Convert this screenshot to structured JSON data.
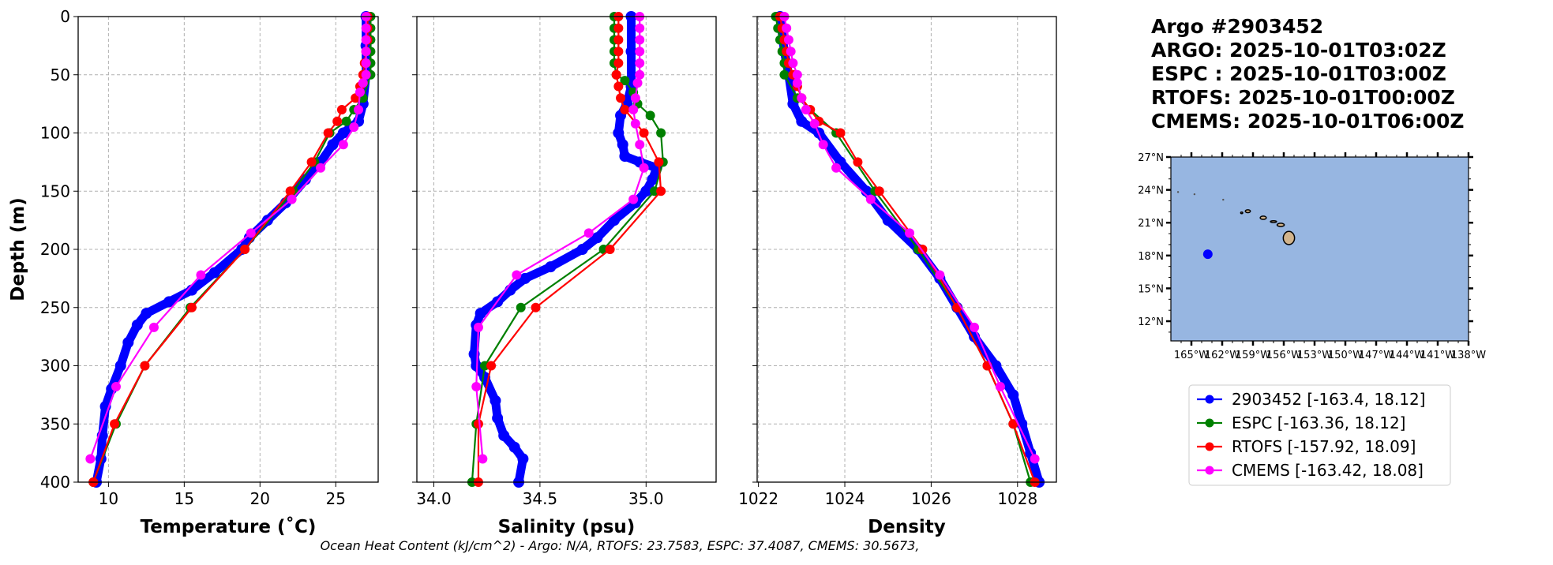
{
  "title_lines": [
    "Argo #2903452",
    "ARGO: 2025-10-01T03:02Z",
    "ESPC : 2025-10-01T03:00Z",
    "RTOFS: 2025-10-01T00:00Z",
    "CMEMS: 2025-10-01T06:00Z"
  ],
  "footer": "Ocean Heat Content (kJ/cm^2) - Argo: N/A,  RTOFS: 23.7583,  ESPC: 37.4087,  CMEMS: 30.5673,",
  "colors": {
    "argo": "#0000ff",
    "espc": "#008000",
    "rtofs": "#ff0000",
    "cmems": "#ff00ff",
    "ocean": "#97b6e1",
    "land": "#d2b48c"
  },
  "legend": [
    {
      "key": "argo",
      "label": "2903452 [-163.4, 18.12]"
    },
    {
      "key": "espc",
      "label": "ESPC [-163.36, 18.12]"
    },
    {
      "key": "rtofs",
      "label": "RTOFS [-157.92, 18.09]"
    },
    {
      "key": "cmems",
      "label": "CMEMS [-163.42, 18.08]"
    }
  ],
  "chart_data": [
    {
      "type": "line",
      "id": "temperature",
      "xlabel": "Temperature (˚C)",
      "ylabel": "Depth (m)",
      "xlim": [
        8.0,
        27.8
      ],
      "ylim": [
        400,
        0
      ],
      "xticks": [
        10,
        15,
        20,
        25
      ],
      "yticks": [
        0,
        50,
        100,
        150,
        200,
        250,
        300,
        350,
        400
      ],
      "grid": true,
      "series": [
        {
          "name": "argo",
          "depth": [
            0,
            25,
            50,
            75,
            90,
            100,
            110,
            125,
            140,
            160,
            175,
            190,
            200,
            220,
            235,
            245,
            255,
            265,
            280,
            300,
            320,
            335,
            360,
            380,
            400
          ],
          "values": [
            27.0,
            27.0,
            27.0,
            26.8,
            26.5,
            25.5,
            24.8,
            24.0,
            23.0,
            21.7,
            20.5,
            19.3,
            18.8,
            17.0,
            15.5,
            14.0,
            12.5,
            11.9,
            11.3,
            10.8,
            10.2,
            9.8,
            9.6,
            9.5,
            9.2
          ]
        },
        {
          "name": "espc",
          "depth": [
            0,
            10,
            20,
            30,
            40,
            50,
            70,
            80,
            90,
            100,
            125,
            150,
            200,
            250,
            300,
            350,
            400
          ],
          "values": [
            27.3,
            27.3,
            27.3,
            27.3,
            27.3,
            27.3,
            26.8,
            26.2,
            25.7,
            24.6,
            23.6,
            22.2,
            19.0,
            15.4,
            12.4,
            10.5,
            9.0
          ]
        },
        {
          "name": "rtofs",
          "depth": [
            0,
            10,
            20,
            30,
            40,
            50,
            60,
            70,
            80,
            90,
            100,
            125,
            150,
            200,
            250,
            300,
            350,
            400
          ],
          "values": [
            27.1,
            27.1,
            27.1,
            27.0,
            26.9,
            26.8,
            26.6,
            26.3,
            25.4,
            25.1,
            24.5,
            23.4,
            22.0,
            19.0,
            15.5,
            12.4,
            10.4,
            9.0
          ]
        },
        {
          "name": "cmems",
          "depth": [
            0,
            10,
            20,
            30,
            40,
            50,
            57,
            65,
            80,
            95,
            110,
            130,
            157,
            186,
            222,
            267,
            318,
            380
          ],
          "values": [
            27.0,
            27.0,
            27.0,
            27.0,
            27.0,
            27.0,
            26.8,
            26.6,
            26.5,
            26.2,
            25.5,
            24.0,
            22.1,
            19.4,
            16.1,
            13.0,
            10.5,
            8.8
          ]
        }
      ]
    },
    {
      "type": "line",
      "id": "salinity",
      "xlabel": "Salinity (psu)",
      "ylabel": "",
      "xlim": [
        33.92,
        35.33
      ],
      "ylim": [
        400,
        0
      ],
      "xticks": [
        34.0,
        34.5,
        35.0
      ],
      "xtick_labels": [
        "34.0",
        "34.5",
        "35.0"
      ],
      "yticks": [
        0,
        50,
        100,
        150,
        200,
        250,
        300,
        350,
        400
      ],
      "grid": true,
      "series": [
        {
          "name": "argo",
          "depth": [
            0,
            30,
            60,
            75,
            85,
            100,
            110,
            120,
            125,
            130,
            140,
            150,
            160,
            175,
            190,
            200,
            215,
            225,
            235,
            245,
            255,
            265,
            290,
            300,
            310,
            330,
            345,
            360,
            370,
            380,
            400
          ],
          "values": [
            34.93,
            34.93,
            34.93,
            34.91,
            34.88,
            34.87,
            34.89,
            34.9,
            34.97,
            35.05,
            35.03,
            35.0,
            34.95,
            34.85,
            34.77,
            34.7,
            34.55,
            34.43,
            34.36,
            34.3,
            34.22,
            34.2,
            34.19,
            34.2,
            34.24,
            34.29,
            34.3,
            34.33,
            34.38,
            34.42,
            34.4
          ]
        },
        {
          "name": "espc",
          "depth": [
            0,
            10,
            20,
            30,
            40,
            50,
            55,
            65,
            75,
            85,
            100,
            125,
            150,
            200,
            250,
            300,
            350,
            400
          ],
          "values": [
            34.85,
            34.85,
            34.85,
            34.85,
            34.85,
            34.86,
            34.9,
            34.94,
            34.96,
            35.02,
            35.07,
            35.08,
            35.04,
            34.8,
            34.41,
            34.24,
            34.2,
            34.18
          ]
        },
        {
          "name": "rtofs",
          "depth": [
            0,
            10,
            20,
            30,
            40,
            50,
            60,
            70,
            80,
            100,
            125,
            150,
            200,
            250,
            300,
            350,
            400
          ],
          "values": [
            34.87,
            34.87,
            34.87,
            34.87,
            34.87,
            34.86,
            34.87,
            34.88,
            34.9,
            34.99,
            35.06,
            35.07,
            34.83,
            34.48,
            34.27,
            34.21,
            34.21
          ]
        },
        {
          "name": "cmems",
          "depth": [
            0,
            10,
            20,
            30,
            40,
            50,
            57,
            70,
            80,
            92,
            110,
            130,
            157,
            186,
            222,
            267,
            318,
            380
          ],
          "values": [
            34.97,
            34.97,
            34.97,
            34.97,
            34.97,
            34.97,
            34.96,
            34.95,
            34.94,
            34.95,
            34.97,
            34.99,
            34.94,
            34.73,
            34.39,
            34.21,
            34.2,
            34.23
          ]
        }
      ]
    },
    {
      "type": "line",
      "id": "density",
      "xlabel": "Density",
      "ylabel": "",
      "xlim": [
        1021.97,
        1028.9
      ],
      "ylim": [
        400,
        0
      ],
      "xticks": [
        1022,
        1024,
        1026,
        1028
      ],
      "yticks": [
        0,
        50,
        100,
        150,
        200,
        250,
        300,
        350,
        400
      ],
      "grid": true,
      "series": [
        {
          "name": "argo",
          "depth": [
            0,
            30,
            50,
            75,
            90,
            100,
            125,
            150,
            175,
            200,
            225,
            250,
            275,
            300,
            325,
            350,
            375,
            400
          ],
          "values": [
            1022.5,
            1022.6,
            1022.7,
            1022.8,
            1023.0,
            1023.4,
            1023.9,
            1024.5,
            1025.0,
            1025.7,
            1026.2,
            1026.6,
            1027.0,
            1027.5,
            1027.9,
            1028.1,
            1028.3,
            1028.5
          ]
        },
        {
          "name": "espc",
          "depth": [
            0,
            10,
            20,
            30,
            40,
            50,
            70,
            100,
            150,
            200,
            250,
            300,
            350,
            400
          ],
          "values": [
            1022.4,
            1022.45,
            1022.5,
            1022.55,
            1022.6,
            1022.6,
            1022.9,
            1023.8,
            1024.7,
            1025.7,
            1026.6,
            1027.3,
            1027.9,
            1028.3
          ]
        },
        {
          "name": "rtofs",
          "depth": [
            0,
            10,
            20,
            30,
            40,
            50,
            60,
            70,
            80,
            90,
            100,
            125,
            150,
            200,
            250,
            300,
            350,
            400
          ],
          "values": [
            1022.5,
            1022.55,
            1022.6,
            1022.65,
            1022.7,
            1022.8,
            1022.9,
            1023.0,
            1023.2,
            1023.4,
            1023.9,
            1024.3,
            1024.8,
            1025.8,
            1026.6,
            1027.3,
            1027.9,
            1028.4
          ]
        },
        {
          "name": "cmems",
          "depth": [
            0,
            10,
            20,
            30,
            40,
            50,
            57,
            70,
            80,
            92,
            110,
            130,
            157,
            186,
            222,
            267,
            318,
            380
          ],
          "values": [
            1022.6,
            1022.65,
            1022.7,
            1022.75,
            1022.8,
            1022.9,
            1022.9,
            1023.0,
            1023.1,
            1023.3,
            1023.5,
            1023.8,
            1024.6,
            1025.5,
            1026.2,
            1027.0,
            1027.6,
            1028.4
          ]
        }
      ]
    },
    {
      "type": "scatter",
      "id": "location-map",
      "lon_range": [
        -167,
        -138
      ],
      "lat_range": [
        10.2,
        27
      ],
      "lon_ticks": [
        -165,
        -162,
        -159,
        -156,
        -153,
        -150,
        -147,
        -144,
        -141,
        -138
      ],
      "lon_tick_labels": [
        "165°W",
        "162°W",
        "159°W",
        "156°W",
        "153°W",
        "150°W",
        "147°W",
        "144°W",
        "141°W",
        "138°W"
      ],
      "lat_ticks": [
        12,
        15,
        18,
        21,
        24,
        27
      ],
      "lat_tick_labels": [
        "12°N",
        "15°N",
        "18°N",
        "21°N",
        "24°N",
        "27°N"
      ],
      "points": [
        {
          "name": "argo",
          "lon": -163.4,
          "lat": 18.12
        }
      ]
    }
  ]
}
